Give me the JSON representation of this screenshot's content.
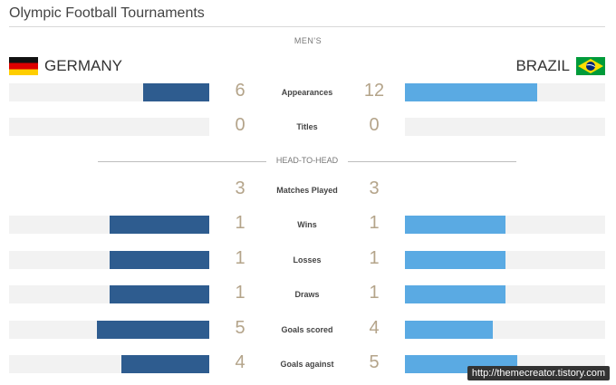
{
  "title": "Olympic Football Tournaments",
  "sections": {
    "mens": "MEN'S",
    "head_to_head": "HEAD-TO-HEAD"
  },
  "teams": {
    "left": {
      "name": "GERMANY",
      "flag": "germany-flag"
    },
    "right": {
      "name": "BRAZIL",
      "flag": "brazil-flag"
    }
  },
  "colors": {
    "left_bar": "#2e5c8f",
    "right_bar": "#5aaae3",
    "number": "#b4a48a"
  },
  "stats": [
    {
      "label": "Appearances",
      "left": "6",
      "right": "12",
      "left_frac": 0.33,
      "right_frac": 0.66
    },
    {
      "label": "Titles",
      "left": "0",
      "right": "0",
      "left_frac": 0,
      "right_frac": 0
    },
    {
      "label": "Matches Played",
      "left": "3",
      "right": "3",
      "left_frac": null,
      "right_frac": null
    },
    {
      "label": "Wins",
      "left": "1",
      "right": "1",
      "left_frac": 0.5,
      "right_frac": 0.5
    },
    {
      "label": "Losses",
      "left": "1",
      "right": "1",
      "left_frac": 0.5,
      "right_frac": 0.5
    },
    {
      "label": "Draws",
      "left": "1",
      "right": "1",
      "left_frac": 0.5,
      "right_frac": 0.5
    },
    {
      "label": "Goals scored",
      "left": "5",
      "right": "4",
      "left_frac": 0.56,
      "right_frac": 0.44
    },
    {
      "label": "Goals against",
      "left": "4",
      "right": "5",
      "left_frac": 0.44,
      "right_frac": 0.56
    }
  ],
  "watermark": "http://themecreator.tistory.com"
}
